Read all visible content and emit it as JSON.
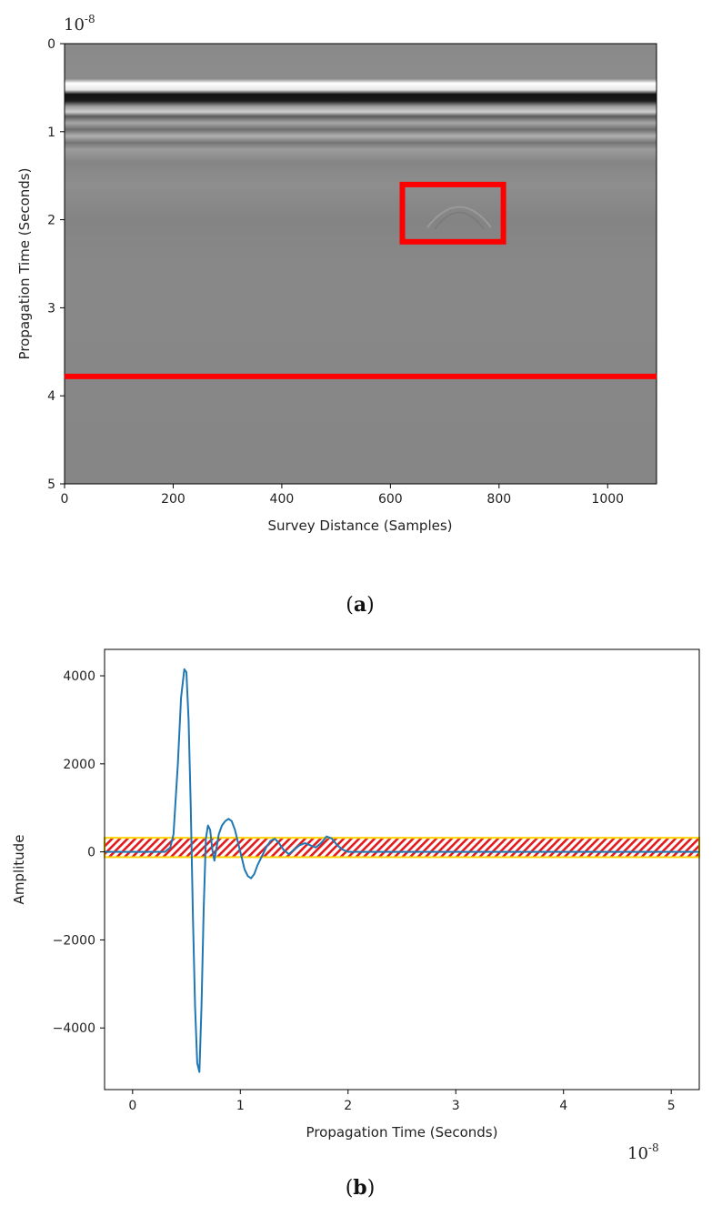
{
  "colors": {
    "overlay_red": "#ff0000",
    "line_blue": "#1f77b4",
    "hatch_red": "#e31a1c",
    "hatch_yellow": "#ffd400",
    "bscan_background": "#808080"
  },
  "chart_data": [
    {
      "type": "heatmap",
      "panel_label": "a",
      "xlabel": "Survey Distance (Samples)",
      "ylabel": "Propagation Time (Seconds)",
      "y_scale_factor": "10^{-8}",
      "x_ticks": [
        "0",
        "200",
        "400",
        "600",
        "800",
        "1000"
      ],
      "y_ticks": [
        "0",
        "1",
        "2",
        "3",
        "4",
        "5"
      ],
      "xlim": [
        0,
        1090
      ],
      "ylim": [
        5,
        0
      ],
      "colormap": "gray",
      "annotations": [
        {
          "kind": "rectangle",
          "x": [
            622,
            808
          ],
          "y": [
            1.6,
            2.25
          ],
          "color": "#ff0000",
          "note": "hyperbolic reflection"
        },
        {
          "kind": "hline",
          "y": 3.78,
          "color": "#ff0000"
        }
      ],
      "strong_reflections": [
        {
          "y": 0.52,
          "type": "white-band"
        },
        {
          "y": 0.62,
          "type": "black-band"
        },
        {
          "y": 0.78,
          "type": "gray-band"
        },
        {
          "y": 0.95,
          "type": "gray-band"
        },
        {
          "y": 1.1,
          "type": "gray-band"
        }
      ]
    },
    {
      "type": "line",
      "panel_label": "b",
      "xlabel": "Propagation Time (Seconds)",
      "ylabel": "Amplitude",
      "x_scale_factor": "10^{-8}",
      "x_ticks": [
        "0",
        "1",
        "2",
        "3",
        "4",
        "5"
      ],
      "y_ticks": [
        "4000",
        "2000",
        "0",
        "−2000",
        "−4000"
      ],
      "xlim": [
        -0.26,
        5.26
      ],
      "ylim": [
        -5400,
        4600
      ],
      "series": [
        {
          "x": [
            -0.26,
            0.3,
            0.35,
            0.38,
            0.42,
            0.45,
            0.48,
            0.5,
            0.52,
            0.54,
            0.56,
            0.58,
            0.6,
            0.62,
            0.64,
            0.66,
            0.68,
            0.7,
            0.72,
            0.74,
            0.76,
            0.78,
            0.8,
            0.83,
            0.86,
            0.89,
            0.92,
            0.95,
            0.98,
            1.01,
            1.04,
            1.07,
            1.1,
            1.13,
            1.16,
            1.2,
            1.24,
            1.28,
            1.32,
            1.36,
            1.4,
            1.45,
            1.5,
            1.55,
            1.6,
            1.65,
            1.7,
            1.75,
            1.8,
            1.85,
            1.9,
            1.95,
            2.0,
            2.1,
            2.3,
            3.0,
            4.0,
            5.26
          ],
          "y": [
            0,
            0,
            100,
            400,
            2000,
            3500,
            4150,
            4080,
            3000,
            1000,
            -1500,
            -3500,
            -4800,
            -5000,
            -3500,
            -1300,
            300,
            600,
            500,
            50,
            -200,
            100,
            400,
            600,
            700,
            750,
            700,
            500,
            200,
            -100,
            -400,
            -550,
            -600,
            -500,
            -300,
            -100,
            100,
            250,
            300,
            200,
            50,
            -50,
            50,
            150,
            200,
            150,
            100,
            200,
            350,
            300,
            150,
            50,
            0,
            0,
            0,
            0,
            0,
            0
          ]
        }
      ],
      "annotations": [
        {
          "kind": "hatched-band",
          "y": [
            -120,
            320
          ],
          "x": [
            -0.26,
            5.26
          ],
          "colors": [
            "#e31a1c",
            "#ffd400"
          ]
        }
      ]
    }
  ]
}
